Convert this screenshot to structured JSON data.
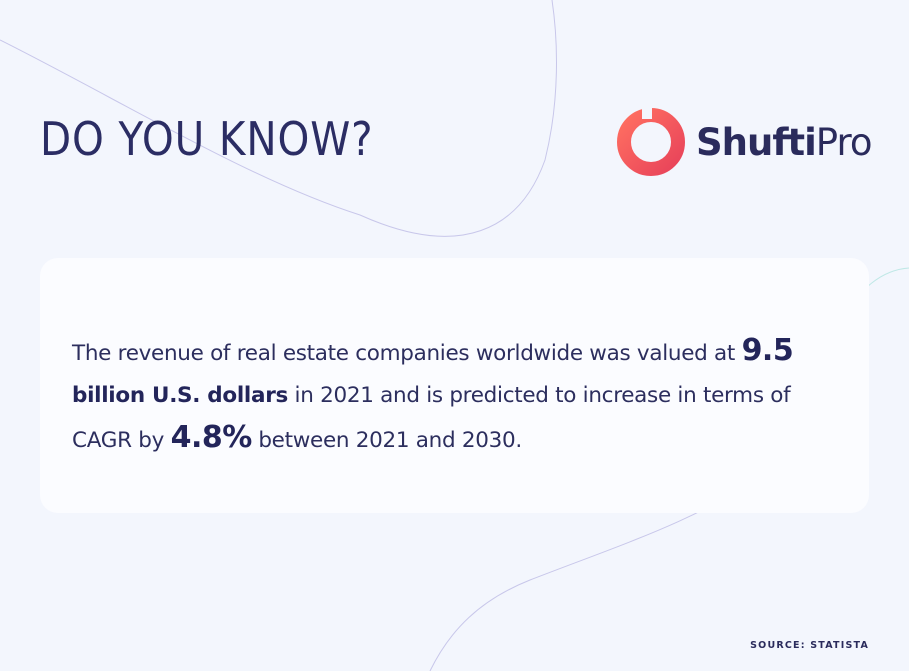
{
  "headline": "DO YOU KNOW?",
  "logo": {
    "brand_bold": "Shufti",
    "brand_light": "Pro",
    "mark_color": "#f25b5b"
  },
  "fact": {
    "part1": "The revenue of real estate companies worldwide was valued at ",
    "big_value_1": "9.5",
    "strong_text": " billion U.S. dollars",
    "part2": " in 2021 and is predicted to increase in terms of CAGR by ",
    "big_value_2": "4.8%",
    "part3": " between 2021 and 2030."
  },
  "source": "SOURCE: STATISTA",
  "colors": {
    "background": "#f3f6fd",
    "card": "#fbfcff",
    "text": "#2a2b5c",
    "accent": "#f25b5b"
  }
}
